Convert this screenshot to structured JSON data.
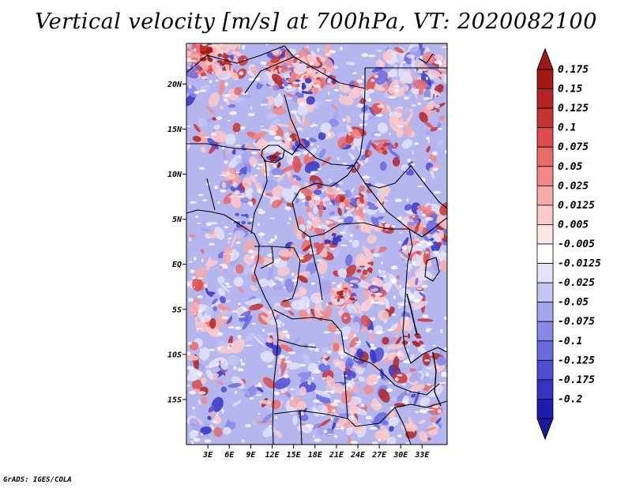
{
  "title": "Vertical velocity [m/s] at 700hPa, VT: 2020082100",
  "credit": "GrADS: IGES/COLA",
  "map": {
    "lon_range": [
      0,
      36.5
    ],
    "lat_range": [
      -20,
      24.5
    ],
    "field": "vertical velocity (m/s) at 700 hPa",
    "lat_ticks": [
      {
        "value": 20,
        "label": "20N"
      },
      {
        "value": 15,
        "label": "15N"
      },
      {
        "value": 10,
        "label": "10N"
      },
      {
        "value": 5,
        "label": "5N"
      },
      {
        "value": 0,
        "label": "EQ"
      },
      {
        "value": -5,
        "label": "5S"
      },
      {
        "value": -10,
        "label": "10S"
      },
      {
        "value": -15,
        "label": "15S"
      }
    ],
    "lon_ticks": [
      {
        "value": 3,
        "label": "3E"
      },
      {
        "value": 6,
        "label": "6E"
      },
      {
        "value": 9,
        "label": "9E"
      },
      {
        "value": 12,
        "label": "12E"
      },
      {
        "value": 15,
        "label": "15E"
      },
      {
        "value": 18,
        "label": "18E"
      },
      {
        "value": 21,
        "label": "21E"
      },
      {
        "value": 24,
        "label": "24E"
      },
      {
        "value": 27,
        "label": "27E"
      },
      {
        "value": 30,
        "label": "30E"
      },
      {
        "value": 33,
        "label": "33E"
      }
    ]
  },
  "colorbar": {
    "levels": [
      {
        "label": "0.175",
        "color": "#a01818"
      },
      {
        "label": "0.15",
        "color": "#b42424"
      },
      {
        "label": "0.125",
        "color": "#c83434"
      },
      {
        "label": "0.1",
        "color": "#dc4c4c"
      },
      {
        "label": "0.075",
        "color": "#e86a6a"
      },
      {
        "label": "0.05",
        "color": "#f08a8a"
      },
      {
        "label": "0.025",
        "color": "#f6aaaa"
      },
      {
        "label": "0.0125",
        "color": "#fbcaca"
      },
      {
        "label": "0.005",
        "color": "#fde6e6"
      },
      {
        "label": "-0.005",
        "color": "#ffffff"
      },
      {
        "label": "-0.0125",
        "color": "#e2e2fb"
      },
      {
        "label": "-0.025",
        "color": "#c4c4f5"
      },
      {
        "label": "-0.05",
        "color": "#a6a6ee"
      },
      {
        "label": "-0.075",
        "color": "#8888e6"
      },
      {
        "label": "-0.1",
        "color": "#6a6ade"
      },
      {
        "label": "-0.125",
        "color": "#4e4ed2"
      },
      {
        "label": "-0.175",
        "color": "#3434c2"
      },
      {
        "label": "-0.2",
        "color": "#1e1eae"
      }
    ],
    "top_color": "#a01818",
    "bottom_color": "#1a1aa0"
  }
}
